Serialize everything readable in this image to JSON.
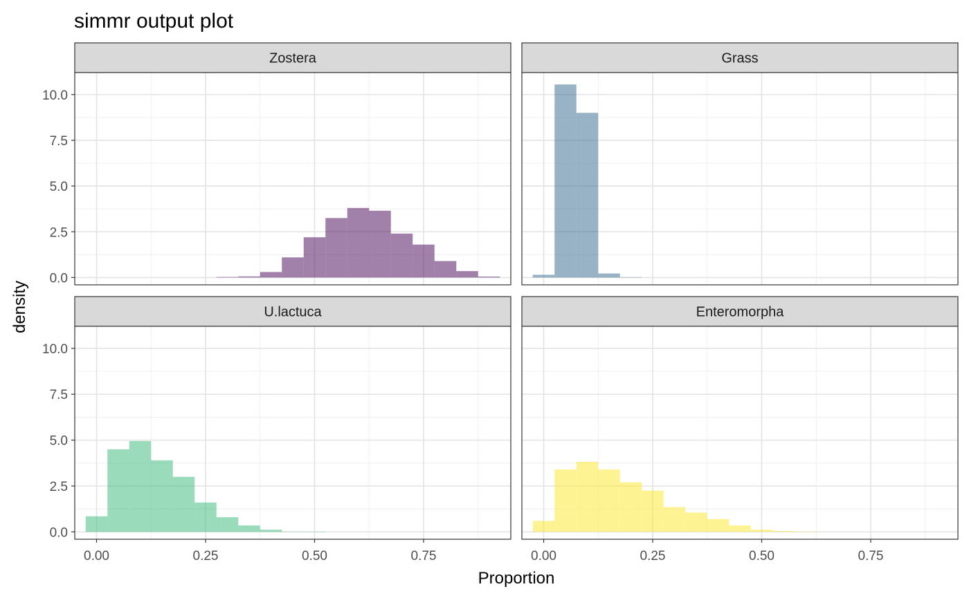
{
  "chart_data": {
    "type": "bar",
    "title": "simmr output plot",
    "xlabel": "Proportion",
    "ylabel": "density",
    "xlim": [
      -0.05,
      0.95
    ],
    "ylim": [
      -0.4,
      11.2
    ],
    "x_ticks": [
      "0.00",
      "0.25",
      "0.50",
      "0.75"
    ],
    "x_tick_values": [
      0,
      0.25,
      0.5,
      0.75
    ],
    "y_ticks": [
      "0.0",
      "2.5",
      "5.0",
      "7.5",
      "10.0"
    ],
    "y_tick_values": [
      0,
      2.5,
      5,
      7.5,
      10
    ],
    "bin_width": 0.05,
    "grid": true,
    "facets": [
      {
        "name": "Zostera",
        "color": "#440154",
        "bin_centers": [
          0.3,
          0.35,
          0.4,
          0.45,
          0.5,
          0.55,
          0.6,
          0.65,
          0.7,
          0.75,
          0.8,
          0.85,
          0.9
        ],
        "values": [
          0.03,
          0.06,
          0.3,
          1.1,
          2.2,
          3.25,
          3.8,
          3.65,
          2.4,
          1.8,
          0.9,
          0.35,
          0.05
        ]
      },
      {
        "name": "Grass",
        "color": "#31688E",
        "bin_centers": [
          0.0,
          0.05,
          0.1,
          0.15,
          0.2
        ],
        "values": [
          0.15,
          10.55,
          9.0,
          0.22,
          0.02
        ]
      },
      {
        "name": "U.lactuca",
        "color": "#35B779",
        "bin_centers": [
          0.0,
          0.05,
          0.1,
          0.15,
          0.2,
          0.25,
          0.3,
          0.35,
          0.4,
          0.45,
          0.5
        ],
        "values": [
          0.85,
          4.5,
          4.95,
          3.9,
          3.0,
          1.6,
          0.8,
          0.35,
          0.12,
          0.02,
          0.01
        ]
      },
      {
        "name": "Enteromorpha",
        "color": "#FDE725",
        "bin_centers": [
          0.0,
          0.05,
          0.1,
          0.15,
          0.2,
          0.25,
          0.3,
          0.35,
          0.4,
          0.45,
          0.5,
          0.55,
          0.6
        ],
        "values": [
          0.6,
          3.4,
          3.82,
          3.4,
          2.7,
          2.25,
          1.35,
          1.05,
          0.7,
          0.35,
          0.12,
          0.05,
          0.01
        ]
      }
    ]
  }
}
